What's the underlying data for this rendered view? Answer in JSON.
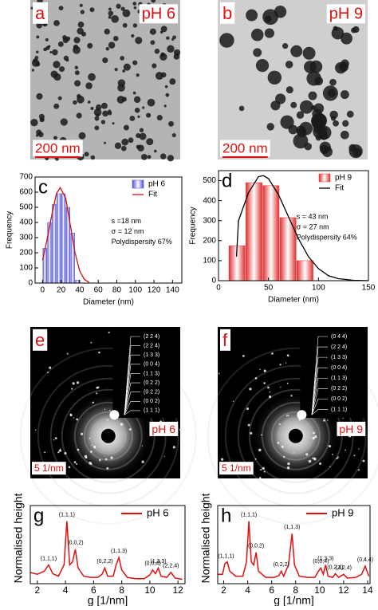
{
  "images": [
    {
      "panel": "a",
      "label": "pH 6",
      "scale_bar": "200 nm"
    },
    {
      "panel": "b",
      "label": "pH 9",
      "scale_bar": "200 nm"
    },
    {
      "panel": "e",
      "label": "pH 6",
      "scale_bar": "5 1/nm",
      "indices": [
        "(2 2 4)",
        "(2 2 4)",
        "(1 3 3)",
        "(0 0 4)",
        "(1 1 3)",
        "(0 2 2)",
        "(0 2 2)",
        "(0 0 2)",
        "(1 1 1)"
      ]
    },
    {
      "panel": "f",
      "label": "pH 9",
      "scale_bar": "5 1/nm",
      "indices": [
        "(0 4 4)",
        "(2 2 4)",
        "(1 3 3)",
        "(0 0 4)",
        "(1 1 3)",
        "(0 2 2)",
        "(0 0 2)",
        "(1 1 1)"
      ]
    }
  ],
  "chart_data": [
    {
      "type": "histogram",
      "panel": "c",
      "x_label": "Diameter (nm)",
      "y_label": "Frequency",
      "xlim": [
        -8,
        150
      ],
      "xticks": [
        0,
        20,
        40,
        60,
        80,
        100,
        120,
        140
      ],
      "ylim": [
        0,
        700
      ],
      "yticks": [
        0,
        100,
        200,
        300,
        400,
        500,
        600,
        700
      ],
      "annotations": [
        "s =18 nm",
        "σ = 12 nm",
        "Polydispersity 67%"
      ],
      "series": [
        {
          "name": "pH 6",
          "color": "#4f4fd8",
          "bins": [
            0,
            5,
            10,
            15,
            20,
            25,
            30,
            35,
            40
          ],
          "values": [
            230,
            400,
            520,
            590,
            590,
            500,
            330,
            20
          ]
        },
        {
          "name": "Fit",
          "color": "#d01010",
          "x": [
            0,
            5,
            10,
            15,
            19,
            25,
            30,
            35,
            40,
            45,
            50
          ],
          "values": [
            150,
            290,
            450,
            590,
            630,
            560,
            380,
            200,
            80,
            25,
            5
          ]
        }
      ]
    },
    {
      "type": "histogram",
      "panel": "d",
      "x_label": "Diameter (nm)",
      "y_label": "Frequency",
      "xlim": [
        0,
        150
      ],
      "xticks": [
        0,
        50,
        100,
        150
      ],
      "ylim": [
        0,
        550
      ],
      "yticks": [
        0,
        100,
        200,
        300,
        400,
        500
      ],
      "annotations": [
        "s = 43 nm",
        "σ = 27 nm",
        "Polydispersity 64%"
      ],
      "series": [
        {
          "name": "pH 9",
          "color": "#e03030",
          "bins": [
            10,
            27,
            44,
            61,
            78,
            95
          ],
          "values": [
            175,
            490,
            475,
            315,
            100
          ]
        },
        {
          "name": "Fit",
          "color": "#000000",
          "x": [
            18,
            20,
            30,
            40,
            45,
            50,
            60,
            70,
            80,
            90,
            100,
            110,
            120,
            135,
            150
          ],
          "values": [
            120,
            300,
            440,
            520,
            525,
            510,
            430,
            320,
            210,
            120,
            60,
            25,
            10,
            2,
            0
          ]
        }
      ]
    },
    {
      "type": "line",
      "panel": "g",
      "x_label": "g [1/nm]",
      "y_label": "Normalised height",
      "xlim": [
        1.5,
        12.5
      ],
      "xticks": [
        2,
        4,
        6,
        8,
        10,
        12
      ],
      "ylim": [
        0,
        1.25
      ],
      "series": [
        {
          "name": "pH 6",
          "color": "#e01010",
          "x": [
            1.5,
            2.0,
            2.5,
            2.8,
            3.1,
            3.5,
            3.9,
            4.1,
            4.3,
            4.5,
            4.7,
            4.9,
            5.3,
            5.8,
            6.3,
            6.6,
            6.8,
            7.0,
            7.4,
            7.6,
            7.8,
            8.0,
            8.4,
            9.0,
            9.6,
            10.0,
            10.2,
            10.4,
            10.6,
            10.8,
            11.2,
            11.5,
            11.8,
            12.3
          ],
          "values": [
            0.18,
            0.15,
            0.2,
            0.3,
            0.16,
            0.12,
            0.3,
            1.0,
            0.3,
            0.35,
            0.55,
            0.25,
            0.12,
            0.1,
            0.1,
            0.15,
            0.25,
            0.12,
            0.12,
            0.3,
            0.42,
            0.22,
            0.1,
            0.08,
            0.08,
            0.14,
            0.22,
            0.16,
            0.25,
            0.12,
            0.1,
            0.18,
            0.09,
            0.07
          ]
        }
      ],
      "peak_labels": [
        {
          "label": "(1,1,1)",
          "x": 2.8
        },
        {
          "label": "(1,1,1)",
          "x": 4.1
        },
        {
          "label": "(0,0,2)",
          "x": 4.7
        },
        {
          "label": "(0,2,2)",
          "x": 6.8
        },
        {
          "label": "(1,1,3)",
          "x": 7.8
        },
        {
          "label": "(0,0,4)",
          "x": 10.2
        },
        {
          "label": "(1,3,3)",
          "x": 10.6
        },
        {
          "label": "(2,2,4)",
          "x": 11.5
        }
      ]
    },
    {
      "type": "line",
      "panel": "h",
      "x_label": "g [1/nm]",
      "y_label": "Normalised height",
      "xlim": [
        1.5,
        14.2
      ],
      "xticks": [
        2,
        4,
        6,
        8,
        10,
        12,
        14
      ],
      "ylim": [
        0,
        1.25
      ],
      "series": [
        {
          "name": "pH 9",
          "color": "#e01010",
          "x": [
            1.5,
            1.9,
            2.1,
            2.3,
            2.5,
            3.0,
            3.6,
            3.9,
            4.1,
            4.3,
            4.5,
            4.7,
            4.9,
            5.5,
            6.2,
            6.6,
            6.8,
            7.0,
            7.4,
            7.7,
            7.9,
            8.3,
            9.0,
            9.6,
            9.9,
            10.1,
            10.3,
            10.5,
            10.7,
            11.1,
            11.3,
            11.6,
            12.0,
            12.3,
            13.0,
            13.5,
            13.8,
            14.1
          ],
          "values": [
            0.15,
            0.15,
            0.32,
            0.35,
            0.2,
            0.12,
            0.12,
            0.35,
            1.0,
            0.35,
            0.3,
            0.5,
            0.2,
            0.1,
            0.1,
            0.13,
            0.2,
            0.12,
            0.3,
            0.8,
            0.3,
            0.12,
            0.1,
            0.1,
            0.2,
            0.25,
            0.15,
            0.3,
            0.12,
            0.1,
            0.16,
            0.1,
            0.15,
            0.09,
            0.1,
            0.15,
            0.28,
            0.12
          ]
        }
      ],
      "peak_labels": [
        {
          "label": "(1,1,1)",
          "x": 2.2
        },
        {
          "label": "(1,1,1)",
          "x": 4.1
        },
        {
          "label": "(0,0,2)",
          "x": 4.7
        },
        {
          "label": "(0,2,2)",
          "x": 6.8
        },
        {
          "label": "(1,1,3)",
          "x": 7.7
        },
        {
          "label": "(0,0,4)",
          "x": 10.1
        },
        {
          "label": "(1,3,3)",
          "x": 10.5
        },
        {
          "label": "(0,2,4)",
          "x": 11.3
        },
        {
          "label": "(2,2,4)",
          "x": 12.0
        },
        {
          "label": "(0,4,4)",
          "x": 13.8
        }
      ]
    }
  ]
}
